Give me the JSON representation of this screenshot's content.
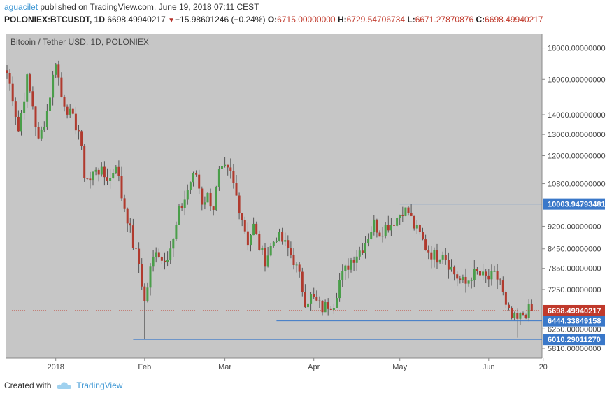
{
  "header": {
    "user": "aguacilet",
    "published_text": " published on TradingView.com, June 19, 2018 07:11 CEST",
    "symbol": "POLONIEX:BTCUSDT, 1D",
    "last": "6698.49940217",
    "change_icon": "triangle-down-icon",
    "change_glyph": "▼",
    "change": "−15.98601246 (−0.24%)",
    "o_label": "O:",
    "o_value": "6715.00000000",
    "h_label": "H:",
    "h_value": "6729.54706734",
    "l_label": "L:",
    "l_value": "6671.27870876",
    "c_label": "C:",
    "c_value": "6698.49940217"
  },
  "footer": {
    "created_with": "Created with",
    "brand": "TradingView"
  },
  "colors": {
    "background": "#c6c6c6",
    "up": "#4a9e4a",
    "down": "#b03a2e",
    "line": "#3a78c9",
    "current": "#c0392b"
  },
  "chart_data": {
    "type": "candlestick",
    "title": "Bitcoin / Tether USD, 1D, POLONIEX",
    "scale": "log",
    "ylim": [
      5600,
      19000
    ],
    "x_range_days": [
      0,
      183
    ],
    "xlabels": [
      {
        "label": "2018",
        "day": 17
      },
      {
        "label": "Feb",
        "day": 48
      },
      {
        "label": "Mar",
        "day": 76
      },
      {
        "label": "Apr",
        "day": 107
      },
      {
        "label": "May",
        "day": 137
      },
      {
        "label": "Jun",
        "day": 168
      },
      {
        "label": "20",
        "day": 187
      }
    ],
    "yticks": [
      18000,
      16000,
      14000,
      13000,
      12000,
      10800,
      9200,
      8450,
      7850,
      7250,
      6250,
      5810
    ],
    "ytick_labels": [
      "18000.00000000",
      "16000.00000000",
      "14000.00000000",
      "13000.00000000",
      "12000.00000000",
      "10800.00000000",
      "9200.00000000",
      "8450.00000000",
      "7850.00000000",
      "7250.00000000",
      "6250.00000000",
      "5810.00000000"
    ],
    "horizontal_lines": [
      {
        "name": "resistance",
        "value": 10003.94793481,
        "label": "10003.94793481",
        "from_day": 137
      },
      {
        "name": "support",
        "value": 6444.33849158,
        "label": "6444.33849158",
        "from_day": 94
      },
      {
        "name": "low",
        "value": 6010.2901127,
        "label": "6010.29011270",
        "from_day": 44
      }
    ],
    "current_price": {
      "value": 6698.49940217,
      "label": "6698.49940217"
    },
    "anchors": [
      [
        0,
        16400
      ],
      [
        2,
        15000
      ],
      [
        4,
        13200
      ],
      [
        7,
        16000
      ],
      [
        9,
        14500
      ],
      [
        11,
        12600
      ],
      [
        14,
        14200
      ],
      [
        17,
        17200
      ],
      [
        19,
        15000
      ],
      [
        22,
        14000
      ],
      [
        25,
        13200
      ],
      [
        27,
        11200
      ],
      [
        29,
        10900
      ],
      [
        31,
        11500
      ],
      [
        34,
        11100
      ],
      [
        36,
        11000
      ],
      [
        38,
        11700
      ],
      [
        40,
        10300
      ],
      [
        42,
        9500
      ],
      [
        44,
        8600
      ],
      [
        46,
        8000
      ],
      [
        48,
        6900
      ],
      [
        50,
        7800
      ],
      [
        52,
        8500
      ],
      [
        54,
        8100
      ],
      [
        56,
        8300
      ],
      [
        58,
        8700
      ],
      [
        60,
        9700
      ],
      [
        62,
        10200
      ],
      [
        64,
        10900
      ],
      [
        66,
        11200
      ],
      [
        68,
        10100
      ],
      [
        70,
        10300
      ],
      [
        72,
        9900
      ],
      [
        74,
        11200
      ],
      [
        76,
        11350
      ],
      [
        78,
        11200
      ],
      [
        80,
        10300
      ],
      [
        82,
        9500
      ],
      [
        84,
        8700
      ],
      [
        86,
        9200
      ],
      [
        88,
        8500
      ],
      [
        90,
        8100
      ],
      [
        92,
        8500
      ],
      [
        94,
        8900
      ],
      [
        96,
        8700
      ],
      [
        98,
        8450
      ],
      [
        100,
        8100
      ],
      [
        102,
        7600
      ],
      [
        104,
        6950
      ],
      [
        106,
        7050
      ],
      [
        108,
        6900
      ],
      [
        110,
        6750
      ],
      [
        112,
        6850
      ],
      [
        114,
        6900
      ],
      [
        116,
        7500
      ],
      [
        118,
        7800
      ],
      [
        120,
        8100
      ],
      [
        122,
        8300
      ],
      [
        124,
        8500
      ],
      [
        126,
        8900
      ],
      [
        128,
        9300
      ],
      [
        130,
        9000
      ],
      [
        132,
        9200
      ],
      [
        134,
        9300
      ],
      [
        136,
        9500
      ],
      [
        138,
        9800
      ],
      [
        140,
        9700
      ],
      [
        142,
        9200
      ],
      [
        144,
        8900
      ],
      [
        146,
        8500
      ],
      [
        148,
        8300
      ],
      [
        150,
        8200
      ],
      [
        152,
        8400
      ],
      [
        154,
        8000
      ],
      [
        156,
        7700
      ],
      [
        158,
        7500
      ],
      [
        160,
        7400
      ],
      [
        162,
        7650
      ],
      [
        164,
        7700
      ],
      [
        166,
        7600
      ],
      [
        168,
        7550
      ],
      [
        170,
        7620
      ],
      [
        172,
        7500
      ],
      [
        174,
        6750
      ],
      [
        176,
        6500
      ],
      [
        178,
        6450
      ],
      [
        180,
        6600
      ],
      [
        182,
        6700
      ],
      [
        183,
        6698.5
      ]
    ]
  }
}
